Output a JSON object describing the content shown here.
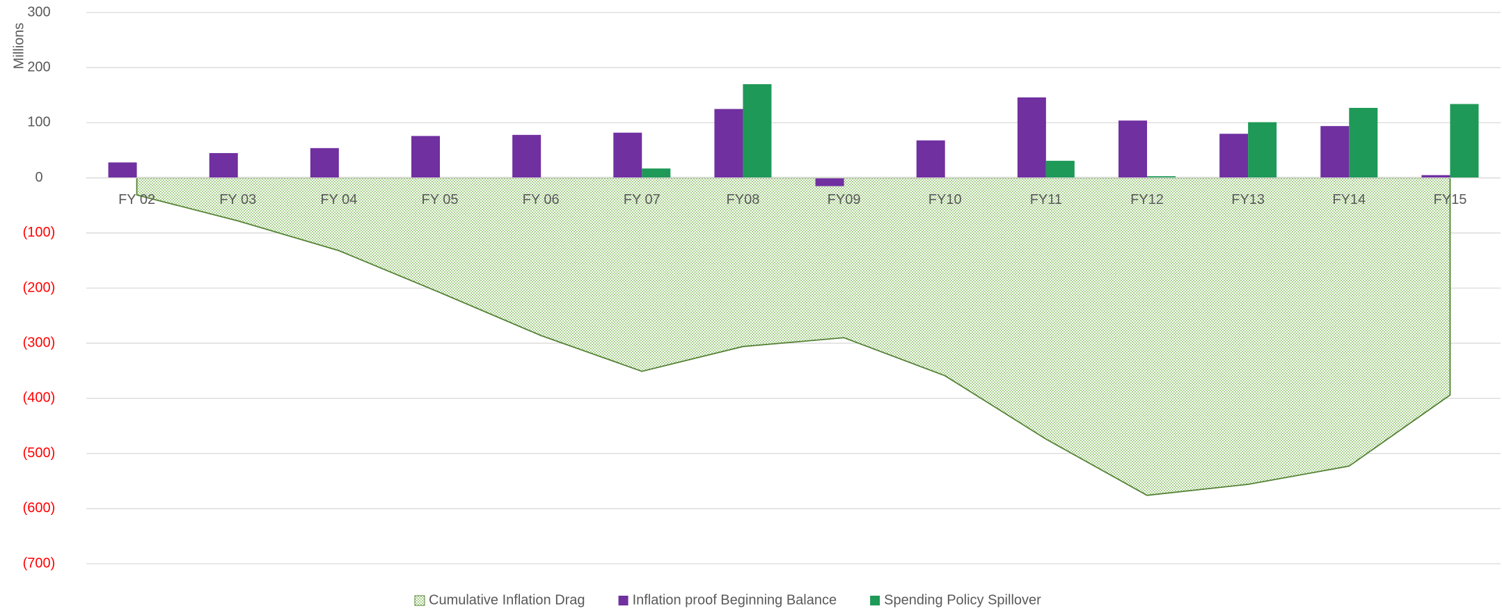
{
  "chart_data": {
    "type": "bar",
    "y_axis_label": "Millions",
    "categories": [
      "FY 02",
      "FY 03",
      "FY 04",
      "FY 05",
      "FY 06",
      "FY 07",
      "FY08",
      "FY09",
      "FY10",
      "FY11",
      "FY12",
      "FY13",
      "FY14",
      "FY15"
    ],
    "series": [
      {
        "name": "Cumulative Inflation Drag",
        "type": "area",
        "color": "#a9d18e",
        "values": [
          -31,
          -78,
          -132,
          -208,
          -286,
          -351,
          -306,
          -290,
          -359,
          -474,
          -576,
          -556,
          -523,
          -394
        ]
      },
      {
        "name": "Inflation proof Beginning Balance",
        "type": "bar",
        "color": "#7030a0",
        "values": [
          28,
          45,
          54,
          76,
          78,
          82,
          125,
          -15,
          68,
          146,
          104,
          80,
          94,
          5
        ]
      },
      {
        "name": "Spending Policy Spillover",
        "type": "bar",
        "color": "#1e9957",
        "values": [
          0,
          0,
          0,
          0,
          0,
          17,
          170,
          0,
          0,
          31,
          3,
          101,
          127,
          134
        ]
      }
    ],
    "ylim": [
      -700,
      300
    ],
    "yticks": [
      {
        "value": -700,
        "label": "(700)"
      },
      {
        "value": -600,
        "label": "(600)"
      },
      {
        "value": -500,
        "label": "(500)"
      },
      {
        "value": -400,
        "label": "(400)"
      },
      {
        "value": -300,
        "label": "(300)"
      },
      {
        "value": -200,
        "label": "(200)"
      },
      {
        "value": -100,
        "label": "(100)"
      },
      0,
      100,
      200,
      300
    ],
    "negative_tick_color": "#ff0000",
    "grid": true,
    "legend": "bottom"
  }
}
